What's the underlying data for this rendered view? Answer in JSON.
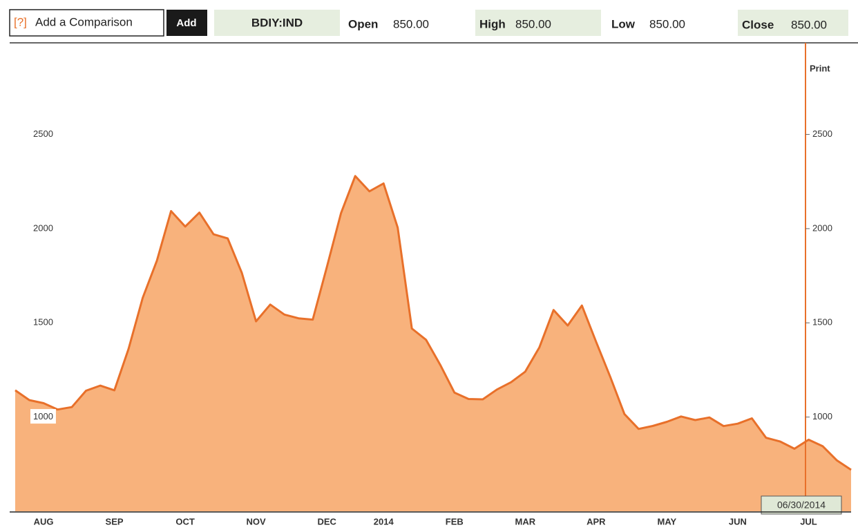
{
  "toolbar": {
    "help": "[?]",
    "comparison_placeholder": "Add a Comparison",
    "add_button": "Add",
    "ticker": "BDIY:IND",
    "open_label": "Open",
    "open_value": "850.00",
    "high_label": "High",
    "high_value": "850.00",
    "low_label": "Low",
    "low_value": "850.00",
    "close_label": "Close",
    "close_value": "850.00"
  },
  "print_label": "Print",
  "cursor_date": "06/30/2014",
  "chart_data": {
    "type": "area",
    "categories": [
      null,
      null,
      "AUG",
      null,
      null,
      null,
      null,
      "SEP",
      null,
      null,
      null,
      null,
      "OCT",
      null,
      null,
      null,
      null,
      "NOV",
      null,
      null,
      null,
      null,
      "DEC",
      null,
      null,
      null,
      "2014",
      null,
      null,
      null,
      null,
      "FEB",
      null,
      null,
      null,
      null,
      "MAR",
      null,
      null,
      null,
      null,
      "APR",
      null,
      null,
      null,
      null,
      "MAY",
      null,
      null,
      null,
      null,
      "JUN",
      null,
      null,
      null,
      null,
      "JUL",
      null,
      null,
      null
    ],
    "series": [
      {
        "name": "BDIY:IND",
        "color": "#e8702a",
        "fill": "#f8b27c",
        "values": [
          1142,
          1090,
          1074,
          1040,
          1053,
          1140,
          1167,
          1142,
          1362,
          1633,
          1830,
          2093,
          2011,
          2085,
          1970,
          1948,
          1765,
          1508,
          1597,
          1544,
          1524,
          1517,
          1797,
          2083,
          2279,
          2198,
          2240,
          2005,
          1470,
          1410,
          1277,
          1130,
          1096,
          1094,
          1146,
          1185,
          1241,
          1370,
          1568,
          1486,
          1592,
          1400,
          1213,
          1016,
          937,
          953,
          975,
          1003,
          984,
          998,
          952,
          965,
          993,
          890,
          870,
          832,
          880,
          845,
          770,
          720
        ]
      }
    ],
    "ylim": [
      500,
      2975
    ],
    "yticks": [
      1000,
      1500,
      2000,
      2500
    ],
    "grid": false
  }
}
